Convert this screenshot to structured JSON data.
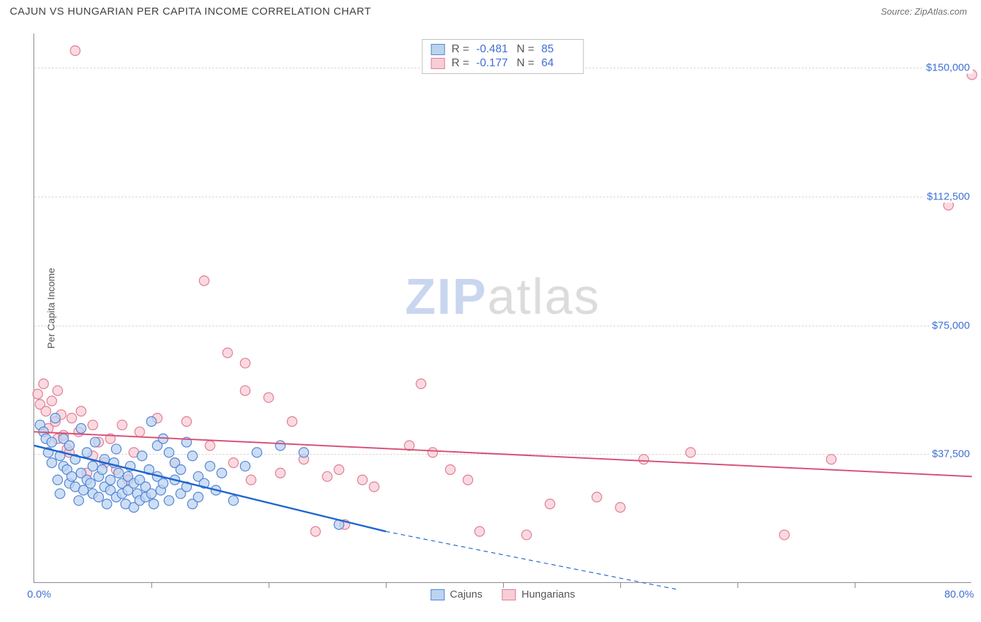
{
  "header": {
    "title": "CAJUN VS HUNGARIAN PER CAPITA INCOME CORRELATION CHART",
    "source_prefix": "Source: ",
    "source_name": "ZipAtlas.com"
  },
  "watermark": {
    "part1": "ZIP",
    "part2": "atlas"
  },
  "axis": {
    "y_title": "Per Capita Income",
    "x_start": "0.0%",
    "x_end": "80.0%"
  },
  "chart": {
    "type": "scatter",
    "xlim": [
      0,
      80
    ],
    "ylim": [
      0,
      160000
    ],
    "background_color": "#ffffff",
    "grid_color": "#d8d8d8",
    "y_gridlines": [
      37500,
      75000,
      112500,
      150000
    ],
    "y_labels": [
      "$37,500",
      "$75,000",
      "$112,500",
      "$150,000"
    ],
    "x_ticks": [
      10,
      20,
      30,
      40,
      50,
      60,
      70
    ],
    "tick_fontsize": 15,
    "tick_color": "#3d6fd6",
    "label_fontsize": 14,
    "label_color": "#555555"
  },
  "series": {
    "cajuns": {
      "label": "Cajuns",
      "R": "-0.481",
      "N": "85",
      "marker_fill": "#bcd3f0",
      "marker_stroke": "#4f84d6",
      "marker_radius": 7,
      "line_color": "#1f66d0",
      "line_width": 2.5,
      "trend_start": [
        0,
        40000
      ],
      "trend_solid_end": [
        30,
        15000
      ],
      "trend_dash_end": [
        55,
        -2000
      ],
      "points": [
        [
          0.5,
          46000
        ],
        [
          0.8,
          44000
        ],
        [
          1.0,
          42000
        ],
        [
          1.2,
          38000
        ],
        [
          1.5,
          41000
        ],
        [
          1.5,
          35000
        ],
        [
          1.8,
          48000
        ],
        [
          2.0,
          30000
        ],
        [
          2.2,
          26000
        ],
        [
          2.2,
          37000
        ],
        [
          2.5,
          34000
        ],
        [
          2.5,
          42000
        ],
        [
          2.8,
          33000
        ],
        [
          3.0,
          29000
        ],
        [
          3.0,
          40000
        ],
        [
          3.2,
          31000
        ],
        [
          3.5,
          28000
        ],
        [
          3.5,
          36000
        ],
        [
          3.8,
          24000
        ],
        [
          4.0,
          45000
        ],
        [
          4.0,
          32000
        ],
        [
          4.2,
          27000
        ],
        [
          4.5,
          30000
        ],
        [
          4.5,
          38000
        ],
        [
          4.8,
          29000
        ],
        [
          5.0,
          34000
        ],
        [
          5.0,
          26000
        ],
        [
          5.2,
          41000
        ],
        [
          5.5,
          25000
        ],
        [
          5.5,
          31000
        ],
        [
          5.8,
          33000
        ],
        [
          6.0,
          28000
        ],
        [
          6.0,
          36000
        ],
        [
          6.2,
          23000
        ],
        [
          6.5,
          30000
        ],
        [
          6.5,
          27000
        ],
        [
          6.8,
          35000
        ],
        [
          7.0,
          25000
        ],
        [
          7.0,
          39000
        ],
        [
          7.2,
          32000
        ],
        [
          7.5,
          26000
        ],
        [
          7.5,
          29000
        ],
        [
          7.8,
          23000
        ],
        [
          8.0,
          31000
        ],
        [
          8.0,
          27000
        ],
        [
          8.2,
          34000
        ],
        [
          8.5,
          22000
        ],
        [
          8.5,
          29000
        ],
        [
          8.8,
          26000
        ],
        [
          9.0,
          30000
        ],
        [
          9.0,
          24000
        ],
        [
          9.2,
          37000
        ],
        [
          9.5,
          25000
        ],
        [
          9.5,
          28000
        ],
        [
          9.8,
          33000
        ],
        [
          10.0,
          47000
        ],
        [
          10.0,
          26000
        ],
        [
          10.2,
          23000
        ],
        [
          10.5,
          31000
        ],
        [
          10.5,
          40000
        ],
        [
          10.8,
          27000
        ],
        [
          11.0,
          29000
        ],
        [
          11.0,
          42000
        ],
        [
          11.5,
          38000
        ],
        [
          11.5,
          24000
        ],
        [
          12.0,
          30000
        ],
        [
          12.0,
          35000
        ],
        [
          12.5,
          26000
        ],
        [
          12.5,
          33000
        ],
        [
          13.0,
          28000
        ],
        [
          13.0,
          41000
        ],
        [
          13.5,
          23000
        ],
        [
          13.5,
          37000
        ],
        [
          14.0,
          31000
        ],
        [
          14.0,
          25000
        ],
        [
          14.5,
          29000
        ],
        [
          15.0,
          34000
        ],
        [
          15.5,
          27000
        ],
        [
          16.0,
          32000
        ],
        [
          17.0,
          24000
        ],
        [
          18.0,
          34000
        ],
        [
          19.0,
          38000
        ],
        [
          21.0,
          40000
        ],
        [
          23.0,
          38000
        ],
        [
          26.0,
          17000
        ]
      ]
    },
    "hungarians": {
      "label": "Hungarians",
      "R": "-0.177",
      "N": "64",
      "marker_fill": "#f7cdd6",
      "marker_stroke": "#e27a94",
      "marker_radius": 7,
      "line_color": "#d94f75",
      "line_width": 2,
      "trend_start": [
        0,
        44000
      ],
      "trend_end": [
        80,
        31000
      ],
      "points": [
        [
          0.3,
          55000
        ],
        [
          0.5,
          52000
        ],
        [
          0.8,
          58000
        ],
        [
          1.0,
          50000
        ],
        [
          1.2,
          45000
        ],
        [
          1.5,
          53000
        ],
        [
          1.8,
          47000
        ],
        [
          2.0,
          56000
        ],
        [
          2.0,
          42000
        ],
        [
          2.3,
          49000
        ],
        [
          2.5,
          43000
        ],
        [
          2.8,
          39000
        ],
        [
          3.0,
          38000
        ],
        [
          3.2,
          48000
        ],
        [
          3.5,
          155000
        ],
        [
          3.8,
          44000
        ],
        [
          4.0,
          50000
        ],
        [
          4.5,
          32000
        ],
        [
          5.0,
          37000
        ],
        [
          5.0,
          46000
        ],
        [
          5.5,
          41000
        ],
        [
          6.0,
          35000
        ],
        [
          6.5,
          42000
        ],
        [
          7.0,
          33000
        ],
        [
          7.5,
          46000
        ],
        [
          8.0,
          30000
        ],
        [
          8.5,
          38000
        ],
        [
          9.0,
          44000
        ],
        [
          10.5,
          48000
        ],
        [
          12.0,
          35000
        ],
        [
          13.0,
          47000
        ],
        [
          14.5,
          88000
        ],
        [
          15.0,
          40000
        ],
        [
          16.5,
          67000
        ],
        [
          17.0,
          35000
        ],
        [
          18.0,
          56000
        ],
        [
          18.0,
          64000
        ],
        [
          18.5,
          30000
        ],
        [
          20.0,
          54000
        ],
        [
          21.0,
          32000
        ],
        [
          22.0,
          47000
        ],
        [
          23.0,
          36000
        ],
        [
          24.0,
          15000
        ],
        [
          25.0,
          31000
        ],
        [
          26.0,
          33000
        ],
        [
          26.5,
          17000
        ],
        [
          28.0,
          30000
        ],
        [
          29.0,
          28000
        ],
        [
          32.0,
          40000
        ],
        [
          33.0,
          58000
        ],
        [
          34.0,
          38000
        ],
        [
          35.5,
          33000
        ],
        [
          37.0,
          30000
        ],
        [
          38.0,
          15000
        ],
        [
          42.0,
          14000
        ],
        [
          44.0,
          23000
        ],
        [
          48.0,
          25000
        ],
        [
          50.0,
          22000
        ],
        [
          52.0,
          36000
        ],
        [
          56.0,
          38000
        ],
        [
          64.0,
          14000
        ],
        [
          68.0,
          36000
        ],
        [
          78.0,
          110000
        ],
        [
          80.0,
          148000
        ]
      ]
    }
  },
  "stats_labels": {
    "R": "R =",
    "N": "N ="
  }
}
